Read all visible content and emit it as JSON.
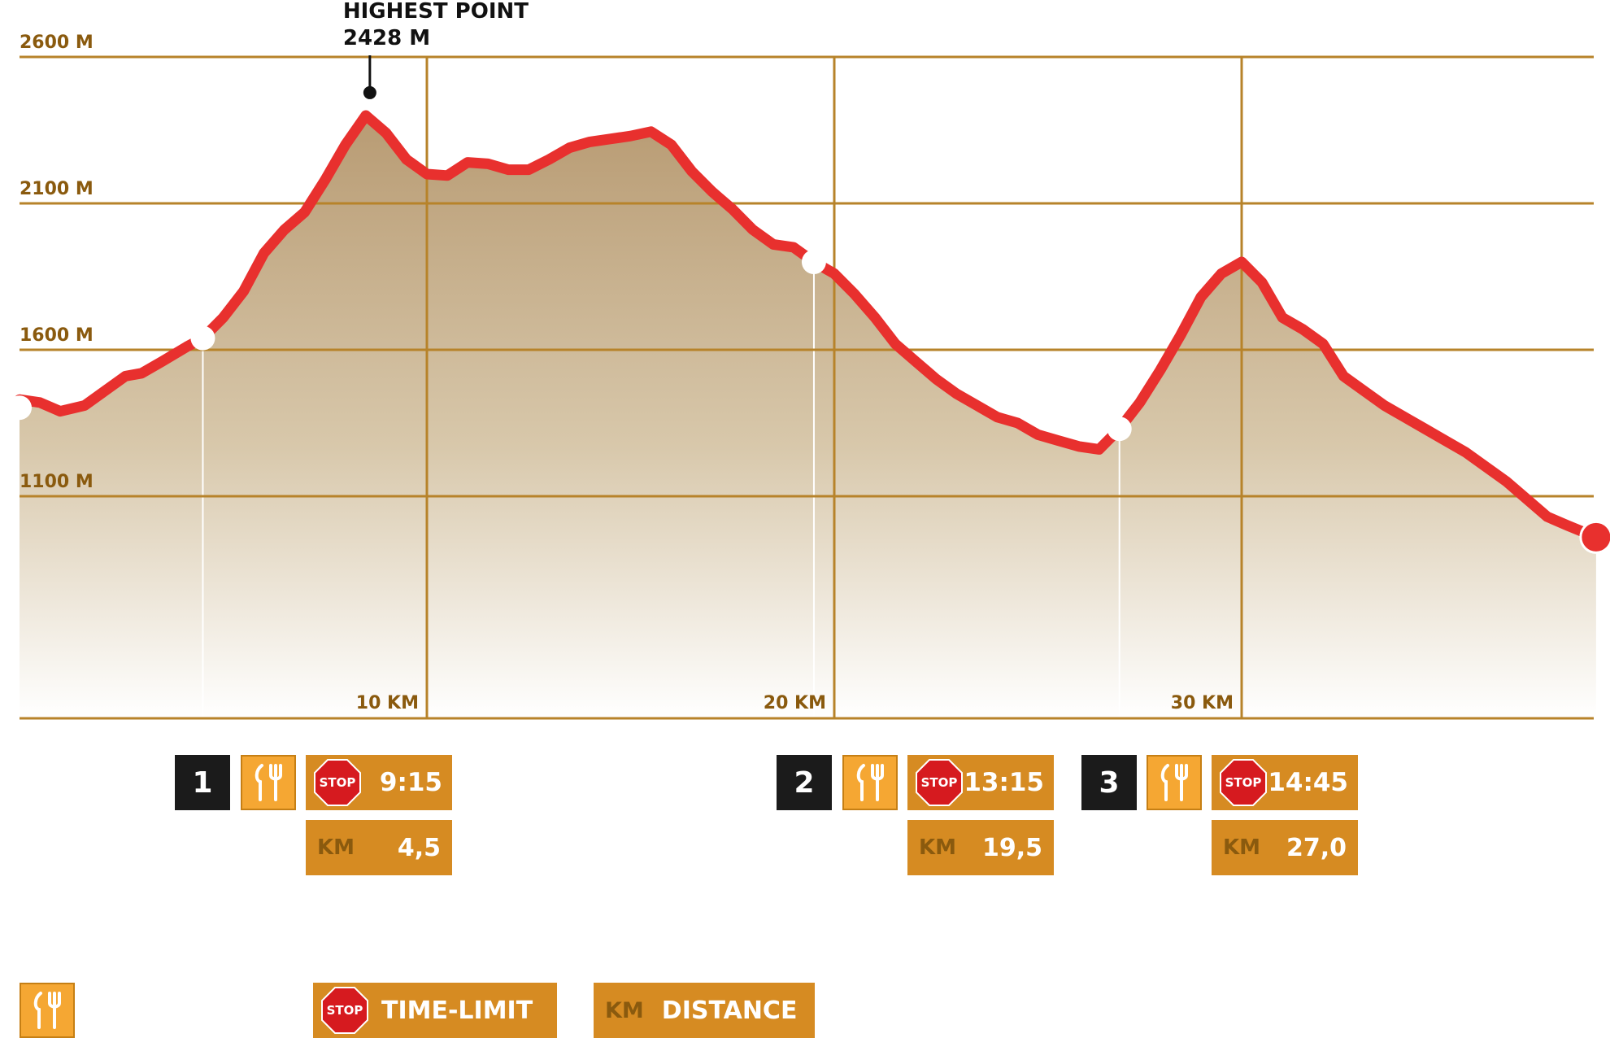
{
  "chart_data": {
    "type": "area",
    "title": "",
    "xlabel": "",
    "ylabel": "",
    "xlim": [
      0,
      38.7
    ],
    "ylim": [
      0,
      2600
    ],
    "y_ticks": [
      {
        "value": 1100,
        "label": "1100 M"
      },
      {
        "value": 1600,
        "label": "1600 M"
      },
      {
        "value": 2100,
        "label": "2100 M"
      },
      {
        "value": 2600,
        "label": "2600 M"
      }
    ],
    "x_ticks": [
      {
        "value": 10,
        "label": "10 KM"
      },
      {
        "value": 20,
        "label": "20 KM"
      },
      {
        "value": 30,
        "label": "30 KM"
      }
    ],
    "grid": true,
    "series": [
      {
        "x": [
          0,
          0.5,
          1.0,
          1.6,
          2.1,
          2.6,
          3.0,
          3.5,
          4.1,
          4.5,
          5.0,
          5.5,
          6.0,
          6.5,
          7.0,
          7.5,
          8.0,
          8.5,
          9.0,
          9.5,
          10.0,
          10.5,
          11.0,
          11.5,
          12.0,
          12.5,
          13.0,
          13.5,
          14.0,
          14.5,
          15.0,
          15.5,
          16.0,
          16.5,
          17.0,
          17.5,
          18.0,
          18.5,
          19.0,
          19.5,
          20.0,
          20.5,
          21.0,
          21.5,
          22.0,
          22.5,
          23.0,
          23.5,
          24.0,
          24.5,
          25.0,
          25.5,
          26.0,
          26.5,
          27.0,
          27.5,
          28.0,
          28.5,
          29.0,
          29.5,
          30.0,
          30.5,
          31.0,
          31.5,
          32.0,
          32.5,
          33.0,
          33.5,
          34.0,
          34.5,
          35.0,
          35.5,
          36.0,
          36.5,
          37.0,
          37.5,
          38.0,
          38.7
        ],
        "y": [
          1430,
          1420,
          1390,
          1410,
          1460,
          1510,
          1520,
          1560,
          1610,
          1640,
          1710,
          1800,
          1930,
          2010,
          2070,
          2180,
          2300,
          2400,
          2340,
          2250,
          2200,
          2195,
          2240,
          2235,
          2215,
          2215,
          2250,
          2290,
          2310,
          2320,
          2330,
          2345,
          2300,
          2210,
          2140,
          2080,
          2010,
          1960,
          1950,
          1900,
          1860,
          1790,
          1710,
          1620,
          1560,
          1500,
          1450,
          1410,
          1370,
          1350,
          1310,
          1290,
          1270,
          1260,
          1330,
          1420,
          1530,
          1650,
          1780,
          1860,
          1900,
          1830,
          1710,
          1670,
          1620,
          1510,
          1460,
          1410,
          1370,
          1330,
          1290,
          1250,
          1200,
          1150,
          1090,
          1030,
          1000,
          960
        ]
      }
    ],
    "annotations": [
      {
        "x": 8.6,
        "y": 2428,
        "title": "HIGHEST POINT",
        "value": "2428 M"
      }
    ]
  },
  "checkpoints": [
    {
      "km_value": 4.5,
      "number": "1",
      "time": "9:15",
      "km_label": "KM",
      "km": "4,5"
    },
    {
      "km_value": 19.5,
      "number": "2",
      "time": "13:15",
      "km_label": "KM",
      "km": "19,5"
    },
    {
      "km_value": 27.0,
      "number": "3",
      "time": "14:45",
      "km_label": "KM",
      "km": "27,0"
    }
  ],
  "stop_sign_text": "STOP",
  "legend": {
    "time_limit": "TIME-LIMIT",
    "km_label": "KM",
    "distance": "DISTANCE"
  },
  "colors": {
    "route": "#e8302e",
    "grid": "#b7832a",
    "label": "#8a5a0e",
    "fill_top": "#bea27e",
    "fill_bottom": "#ffffff",
    "tag": "#d68b22",
    "food": "#f5a733",
    "number_box": "#1b1b1b",
    "stop": "#d61a1f"
  }
}
